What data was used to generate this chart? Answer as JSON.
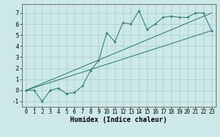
{
  "title": "",
  "xlabel": "Humidex (Indice chaleur)",
  "xlim": [
    -0.5,
    23.5
  ],
  "ylim": [
    -1.5,
    7.8
  ],
  "xticks": [
    0,
    1,
    2,
    3,
    4,
    5,
    6,
    7,
    8,
    9,
    10,
    11,
    12,
    13,
    14,
    15,
    16,
    17,
    18,
    19,
    20,
    21,
    22,
    23
  ],
  "yticks": [
    -1,
    0,
    1,
    2,
    3,
    4,
    5,
    6,
    7
  ],
  "bg_color": "#cce8e8",
  "line_color": "#2e7d6e",
  "grid_color": "#aacece",
  "line1_x": [
    0,
    1,
    2,
    3,
    4,
    5,
    6,
    7,
    8,
    9,
    10,
    11,
    12,
    13,
    14,
    15,
    16,
    17,
    18,
    19,
    20,
    21,
    22,
    23
  ],
  "line1_y": [
    0.0,
    0.0,
    -1.0,
    0.0,
    0.2,
    -0.3,
    -0.2,
    0.4,
    1.8,
    2.7,
    5.2,
    4.4,
    6.1,
    6.0,
    7.2,
    5.5,
    6.0,
    6.6,
    6.7,
    6.6,
    6.6,
    7.0,
    7.0,
    5.4
  ],
  "line2_x": [
    0,
    23
  ],
  "line2_y": [
    0.0,
    5.4
  ],
  "line3_x": [
    0,
    23
  ],
  "line3_y": [
    0.0,
    7.0
  ],
  "xlabel_fontsize": 7,
  "tick_fontsize": 5.5,
  "ytick_fontsize": 6
}
